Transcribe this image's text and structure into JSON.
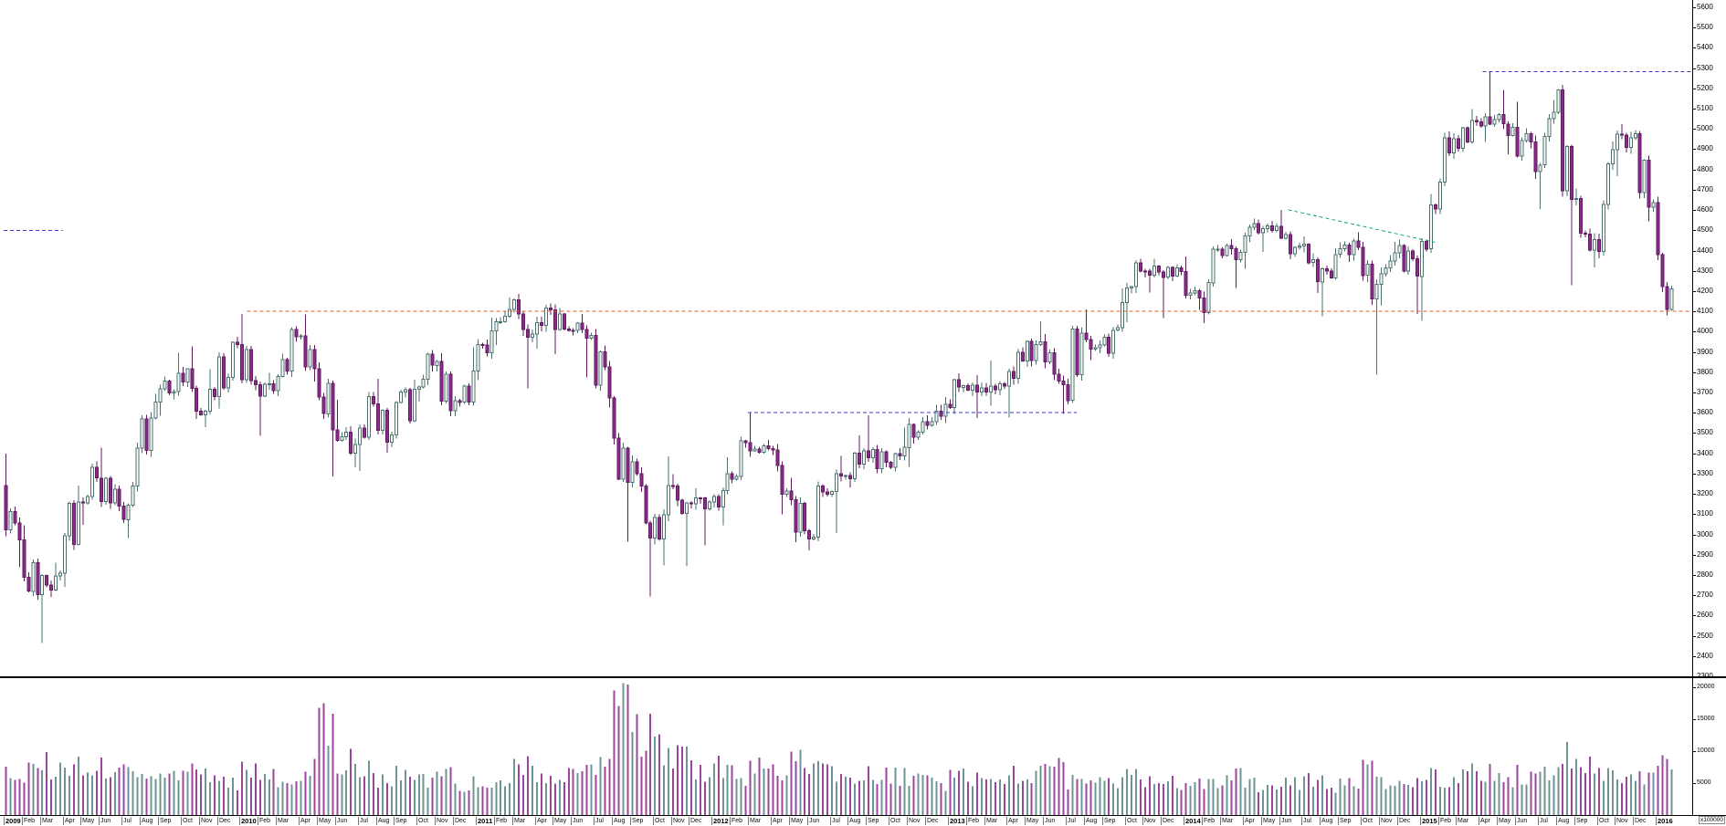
{
  "chart_data": {
    "type": "candlestick",
    "subtype": "weekly-ohlc-with-volume",
    "title": "",
    "grid": false,
    "legend": false,
    "start_price": 3240,
    "price_axis": {
      "min": 2300,
      "max": 5600,
      "step": 100,
      "side": "right"
    },
    "volume_axis": {
      "max": 21500,
      "labels": [
        5000,
        10000,
        15000,
        20000
      ],
      "scale_note": "x100000",
      "side": "right"
    },
    "month_labels": [
      "Jan",
      "Feb",
      "Mar",
      "Apr",
      "May",
      "Jun",
      "Jul",
      "Aug",
      "Sep",
      "Oct",
      "Nov",
      "Dec"
    ],
    "columns": [
      "month",
      "close",
      "high",
      "low",
      "avg_week_volume"
    ],
    "months": [
      [
        "2009-01",
        2974,
        3398,
        2838,
        7000
      ],
      [
        "2009-02",
        2703,
        3045,
        2692,
        7000
      ],
      [
        "2009-03",
        2808,
        2860,
        2465,
        8000
      ],
      [
        "2009-04",
        3160,
        3240,
        2742,
        7500
      ],
      [
        "2009-05",
        3278,
        3351,
        3047,
        7000
      ],
      [
        "2009-06",
        3140,
        3428,
        3114,
        7500
      ],
      [
        "2009-07",
        3426,
        3446,
        2983,
        6500
      ],
      [
        "2009-08",
        3653,
        3694,
        3394,
        6000
      ],
      [
        "2009-09",
        3795,
        3897,
        3586,
        6500
      ],
      [
        "2009-10",
        3607,
        3927,
        3570,
        7500
      ],
      [
        "2009-11",
        3680,
        3814,
        3528,
        6500
      ],
      [
        "2009-12",
        3936,
        3970,
        3621,
        5500
      ],
      [
        "2010-01",
        3739,
        4088,
        3711,
        7000
      ],
      [
        "2010-02",
        3709,
        3797,
        3486,
        6500
      ],
      [
        "2010-03",
        3974,
        4011,
        3684,
        6000
      ],
      [
        "2010-04",
        3817,
        4086,
        3754,
        7500
      ],
      [
        "2010-05",
        3515,
        3848,
        3287,
        14500
      ],
      [
        "2010-06",
        3443,
        3665,
        3331,
        9000
      ],
      [
        "2010-07",
        3643,
        3670,
        3314,
        7000
      ],
      [
        "2010-08",
        3491,
        3767,
        3403,
        6000
      ],
      [
        "2010-09",
        3715,
        3763,
        3473,
        6500
      ],
      [
        "2010-10",
        3834,
        3878,
        3655,
        6000
      ],
      [
        "2010-11",
        3610,
        3893,
        3584,
        6500
      ],
      [
        "2010-12",
        3805,
        3922,
        3595,
        5000
      ],
      [
        "2011-01",
        4005,
        4069,
        3760,
        6000
      ],
      [
        "2011-02",
        4110,
        4169,
        3935,
        6000
      ],
      [
        "2011-03",
        3989,
        4108,
        3721,
        7500
      ],
      [
        "2011-04",
        4107,
        4122,
        3916,
        5500
      ],
      [
        "2011-05",
        4007,
        4108,
        3890,
        6000
      ],
      [
        "2011-06",
        3982,
        4087,
        3775,
        6500
      ],
      [
        "2011-07",
        3673,
        4008,
        3625,
        8500
      ],
      [
        "2011-08",
        3257,
        3672,
        2963,
        20500
      ],
      [
        "2011-09",
        2982,
        3335,
        2693,
        13000
      ],
      [
        "2011-10",
        3242,
        3386,
        2847,
        10500
      ],
      [
        "2011-11",
        3155,
        3297,
        2844,
        9000
      ],
      [
        "2011-12",
        3160,
        3227,
        2945,
        7000
      ],
      [
        "2012-01",
        3299,
        3381,
        3045,
        7500
      ],
      [
        "2012-02",
        3453,
        3466,
        3278,
        6500
      ],
      [
        "2012-03",
        3424,
        3600,
        3384,
        7500
      ],
      [
        "2012-04",
        3213,
        3426,
        3098,
        7000
      ],
      [
        "2012-05",
        3017,
        3279,
        2962,
        8500
      ],
      [
        "2012-06",
        3197,
        3236,
        2922,
        8500
      ],
      [
        "2012-07",
        3291,
        3388,
        3007,
        7000
      ],
      [
        "2012-08",
        3413,
        3488,
        3232,
        5500
      ],
      [
        "2012-09",
        3355,
        3588,
        3335,
        6500
      ],
      [
        "2012-10",
        3429,
        3527,
        3324,
        6000
      ],
      [
        "2012-11",
        3557,
        3576,
        3333,
        5500
      ],
      [
        "2012-12",
        3641,
        3678,
        3528,
        5000
      ],
      [
        "2013-01",
        3733,
        3789,
        3597,
        6000
      ],
      [
        "2013-02",
        3723,
        3786,
        3574,
        6000
      ],
      [
        "2013-03",
        3731,
        3857,
        3635,
        6000
      ],
      [
        "2013-04",
        3856,
        3881,
        3576,
        6500
      ],
      [
        "2013-05",
        3949,
        4051,
        3833,
        6500
      ],
      [
        "2013-06",
        3739,
        3989,
        3595,
        7500
      ],
      [
        "2013-07",
        3993,
        4004,
        3684,
        5500
      ],
      [
        "2013-08",
        3934,
        4110,
        3861,
        5000
      ],
      [
        "2013-09",
        4143,
        4213,
        3891,
        5500
      ],
      [
        "2013-10",
        4300,
        4336,
        4046,
        6000
      ],
      [
        "2013-11",
        4295,
        4359,
        4192,
        5500
      ],
      [
        "2013-12",
        4296,
        4321,
        4068,
        5000
      ],
      [
        "2014-01",
        4166,
        4372,
        4108,
        6000
      ],
      [
        "2014-02",
        4408,
        4428,
        4043,
        5500
      ],
      [
        "2014-03",
        4392,
        4452,
        4215,
        6000
      ],
      [
        "2014-04",
        4487,
        4520,
        4311,
        5000
      ],
      [
        "2014-05",
        4520,
        4536,
        4394,
        4500
      ],
      [
        "2014-06",
        4423,
        4601,
        4399,
        5000
      ],
      [
        "2014-07",
        4246,
        4471,
        4190,
        5500
      ],
      [
        "2014-08",
        4381,
        4395,
        4077,
        5000
      ],
      [
        "2014-09",
        4416,
        4490,
        4344,
        5500
      ],
      [
        "2014-10",
        4233,
        4443,
        3789,
        8500
      ],
      [
        "2014-11",
        4390,
        4443,
        4131,
        5500
      ],
      [
        "2014-12",
        4273,
        4427,
        4087,
        6000
      ],
      [
        "2015-01",
        4604,
        4680,
        4054,
        7000
      ],
      [
        "2015-02",
        4951,
        4965,
        4580,
        6000
      ],
      [
        "2015-03",
        5034,
        5097,
        4905,
        6500
      ],
      [
        "2015-04",
        5046,
        5283,
        4937,
        6500
      ],
      [
        "2015-05",
        5008,
        5193,
        4875,
        5500
      ],
      [
        "2015-06",
        4790,
        5133,
        4754,
        6500
      ],
      [
        "2015-07",
        5082,
        5143,
        4604,
        6500
      ],
      [
        "2015-08",
        4653,
        5201,
        4230,
        9500
      ],
      [
        "2015-09",
        4455,
        4706,
        4318,
        8000
      ],
      [
        "2015-10",
        4898,
        4938,
        4361,
        6500
      ],
      [
        "2015-11",
        4957,
        5024,
        4768,
        6000
      ],
      [
        "2015-12",
        4637,
        4985,
        4545,
        6500
      ],
      [
        "2016-01",
        4210,
        4637,
        4100,
        8500
      ]
    ],
    "lines": [
      {
        "name": "resistance-left",
        "price1": 4500,
        "price2": 4500,
        "month1": 0,
        "month2": 3,
        "color": "#3b3bd1"
      },
      {
        "name": "support-4100",
        "price1": 4100,
        "price2": 4100,
        "month1": 12.4,
        "month2": 86,
        "color": "#e05a1e"
      },
      {
        "name": "resistance-3600",
        "price1": 3600,
        "price2": 3600,
        "month1": 38.0,
        "month2": 54.6,
        "color": "#3b3bd1"
      },
      {
        "name": "resistance-5283",
        "price1": 5283,
        "price2": 5283,
        "month1": 75.2,
        "month2": 86,
        "color": "#3b3bd1"
      },
      {
        "name": "trendline-2014",
        "price1": 4601,
        "price2": 4440,
        "month1": 65.4,
        "month2": 72.9,
        "color": "#17a58c"
      }
    ],
    "colors": {
      "background": "#ffffff",
      "up_fill": "#ffffff",
      "up_stroke": "#4a6f6f",
      "down_fill": "#8e2a8e",
      "down_stroke": "#5e1b5e",
      "volume_up": "#6f9494",
      "volume_down": "#9d449d",
      "axis_text": "#000000",
      "separator": "#000000"
    }
  }
}
